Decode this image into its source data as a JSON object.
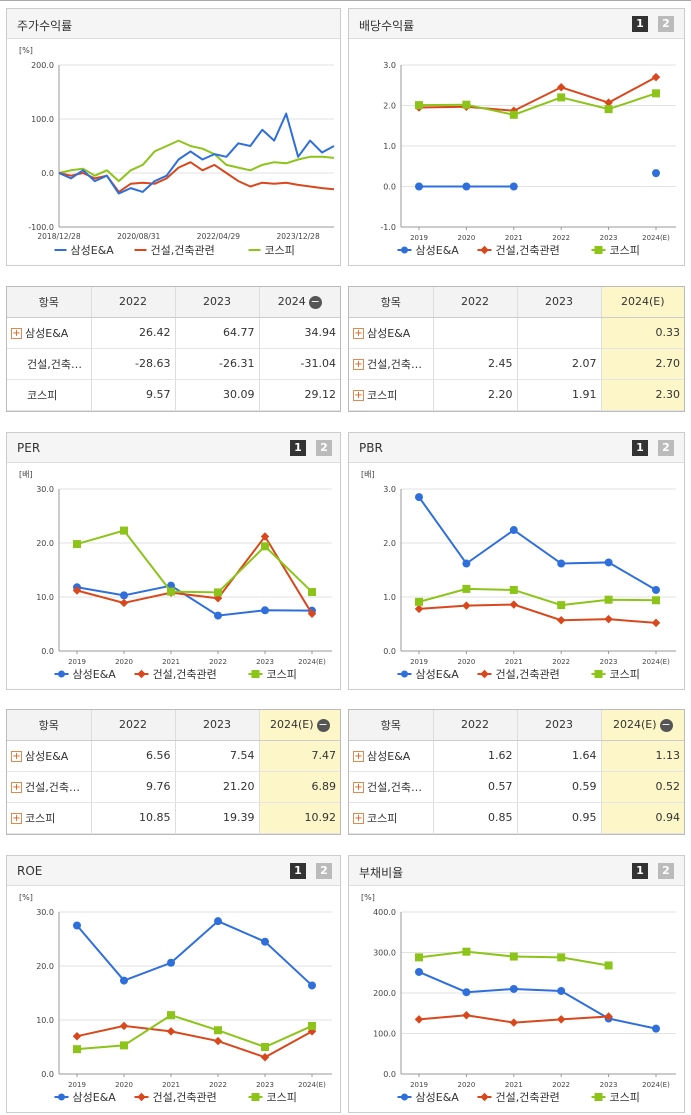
{
  "units": {
    "pct": "[%]",
    "times": "[배]"
  },
  "legend": [
    "삼성E&A",
    "건설,건축관련",
    "코스피"
  ],
  "series_colors": {
    "삼성E&A": "#2f6fdb",
    "건설,건축관련": "#d9481c",
    "코스피": "#8cc41a"
  },
  "page_buttons": [
    "1",
    "2"
  ],
  "panels": {
    "stock": {
      "title": "주가수익률"
    },
    "dividend": {
      "title": "배당수익률"
    },
    "per": {
      "title": "PER"
    },
    "pbr": {
      "title": "PBR"
    },
    "roe": {
      "title": "ROE"
    },
    "debt": {
      "title": "부채비율"
    }
  },
  "tables": {
    "stock": {
      "header": [
        "항목",
        "2022",
        "2023",
        "2024"
      ],
      "minus": "−",
      "rows": [
        {
          "name": "삼성E&A",
          "plus": true,
          "vals": [
            "26.42",
            "64.77",
            "34.94"
          ]
        },
        {
          "name": "건설,건축…",
          "plus": false,
          "vals": [
            "-28.63",
            "-26.31",
            "-31.04"
          ]
        },
        {
          "name": "코스피",
          "plus": false,
          "vals": [
            "9.57",
            "30.09",
            "29.12"
          ]
        }
      ]
    },
    "dividend": {
      "header": [
        "항목",
        "2022",
        "2023",
        "2024(E)"
      ],
      "rows": [
        {
          "name": "삼성E&A",
          "plus": true,
          "vals": [
            "",
            "",
            "0.33"
          ]
        },
        {
          "name": "건설,건축…",
          "plus": true,
          "vals": [
            "2.45",
            "2.07",
            "2.70"
          ]
        },
        {
          "name": "코스피",
          "plus": true,
          "vals": [
            "2.20",
            "1.91",
            "2.30"
          ]
        }
      ]
    },
    "per": {
      "header": [
        "항목",
        "2022",
        "2023",
        "2024(E)"
      ],
      "minus": "−",
      "rows": [
        {
          "name": "삼성E&A",
          "plus": true,
          "vals": [
            "6.56",
            "7.54",
            "7.47"
          ]
        },
        {
          "name": "건설,건축…",
          "plus": true,
          "vals": [
            "9.76",
            "21.20",
            "6.89"
          ]
        },
        {
          "name": "코스피",
          "plus": true,
          "vals": [
            "10.85",
            "19.39",
            "10.92"
          ]
        }
      ]
    },
    "pbr": {
      "header": [
        "항목",
        "2022",
        "2023",
        "2024(E)"
      ],
      "minus": "−",
      "rows": [
        {
          "name": "삼성E&A",
          "plus": true,
          "vals": [
            "1.62",
            "1.64",
            "1.13"
          ]
        },
        {
          "name": "건설,건축…",
          "plus": true,
          "vals": [
            "0.57",
            "0.59",
            "0.52"
          ]
        },
        {
          "name": "코스피",
          "plus": true,
          "vals": [
            "0.85",
            "0.95",
            "0.94"
          ]
        }
      ]
    }
  },
  "chart_data": [
    {
      "id": "stock",
      "type": "line",
      "ylabel": "[%]",
      "ylim": [
        -100,
        200
      ],
      "yticks": [
        "200.0",
        "100.0",
        "0.0",
        "-100.0"
      ],
      "xticklabels": [
        "2018/12/28",
        "2020/08/31",
        "2022/04/29",
        "2023/12/28"
      ],
      "x_span": [
        "2018/12/28",
        "2024/09"
      ],
      "series": [
        {
          "name": "삼성E&A",
          "x": [
            "2018/12",
            "2019/03",
            "2019/06",
            "2019/09",
            "2019/12",
            "2020/03",
            "2020/06",
            "2020/09",
            "2020/12",
            "2021/03",
            "2021/06",
            "2021/09",
            "2021/12",
            "2022/03",
            "2022/06",
            "2022/09",
            "2022/12",
            "2023/03",
            "2023/06",
            "2023/09",
            "2023/12",
            "2024/03",
            "2024/06",
            "2024/09"
          ],
          "values": [
            0,
            -10,
            5,
            -15,
            -5,
            -38,
            -28,
            -35,
            -15,
            -5,
            25,
            40,
            25,
            35,
            30,
            55,
            50,
            80,
            60,
            110,
            30,
            60,
            38,
            50
          ]
        },
        {
          "name": "건설,건축관련",
          "x": [
            "2018/12",
            "2019/03",
            "2019/06",
            "2019/09",
            "2019/12",
            "2020/03",
            "2020/06",
            "2020/09",
            "2020/12",
            "2021/03",
            "2021/06",
            "2021/09",
            "2021/12",
            "2022/03",
            "2022/06",
            "2022/09",
            "2022/12",
            "2023/03",
            "2023/06",
            "2023/09",
            "2023/12",
            "2024/03",
            "2024/06",
            "2024/09"
          ],
          "values": [
            0,
            -5,
            0,
            -10,
            -5,
            -35,
            -20,
            -18,
            -20,
            -10,
            10,
            20,
            5,
            15,
            0,
            -15,
            -25,
            -18,
            -20,
            -18,
            -22,
            -25,
            -28,
            -30
          ]
        },
        {
          "name": "코스피",
          "x": [
            "2018/12",
            "2019/03",
            "2019/06",
            "2019/09",
            "2019/12",
            "2020/03",
            "2020/06",
            "2020/09",
            "2020/12",
            "2021/03",
            "2021/06",
            "2021/09",
            "2021/12",
            "2022/03",
            "2022/06",
            "2022/09",
            "2022/12",
            "2023/03",
            "2023/06",
            "2023/09",
            "2023/12",
            "2024/03",
            "2024/06",
            "2024/09"
          ],
          "values": [
            0,
            5,
            8,
            -5,
            5,
            -15,
            5,
            15,
            40,
            50,
            60,
            50,
            45,
            35,
            15,
            10,
            5,
            15,
            20,
            18,
            25,
            30,
            30,
            28
          ]
        }
      ]
    },
    {
      "id": "dividend",
      "type": "line",
      "ylabel": "",
      "ylim": [
        -1,
        3
      ],
      "yticks": [
        "3.0",
        "2.0",
        "1.0",
        "0.0",
        "-1.0"
      ],
      "categories": [
        "2019",
        "2020",
        "2021",
        "2022",
        "2023",
        "2024(E)"
      ],
      "series": [
        {
          "name": "삼성E&A",
          "values": [
            0.0,
            0.0,
            0.0,
            null,
            null,
            0.33
          ]
        },
        {
          "name": "건설,건축관련",
          "values": [
            1.95,
            1.97,
            1.87,
            2.45,
            2.07,
            2.7
          ]
        },
        {
          "name": "코스피",
          "values": [
            2.01,
            2.02,
            1.77,
            2.2,
            1.91,
            2.3
          ]
        }
      ]
    },
    {
      "id": "per",
      "type": "line",
      "ylabel": "[배]",
      "ylim": [
        0,
        30
      ],
      "yticks": [
        "30.0",
        "20.0",
        "10.0",
        "0.0"
      ],
      "categories": [
        "2019",
        "2020",
        "2021",
        "2022",
        "2023",
        "2024(E)"
      ],
      "series": [
        {
          "name": "삼성E&A",
          "values": [
            11.8,
            10.3,
            12.1,
            6.56,
            7.54,
            7.47
          ]
        },
        {
          "name": "건설,건축관련",
          "values": [
            11.2,
            8.9,
            10.8,
            9.76,
            21.2,
            6.89
          ]
        },
        {
          "name": "코스피",
          "values": [
            19.8,
            22.3,
            11.0,
            10.85,
            19.39,
            10.92
          ]
        }
      ]
    },
    {
      "id": "pbr",
      "type": "line",
      "ylabel": "[배]",
      "ylim": [
        0,
        3
      ],
      "yticks": [
        "3.0",
        "2.0",
        "1.0",
        "0.0"
      ],
      "categories": [
        "2019",
        "2020",
        "2021",
        "2022",
        "2023",
        "2024(E)"
      ],
      "series": [
        {
          "name": "삼성E&A",
          "values": [
            2.85,
            1.62,
            2.24,
            1.62,
            1.64,
            1.13
          ]
        },
        {
          "name": "건설,건축관련",
          "values": [
            0.78,
            0.84,
            0.86,
            0.57,
            0.59,
            0.52
          ]
        },
        {
          "name": "코스피",
          "values": [
            0.91,
            1.15,
            1.13,
            0.85,
            0.95,
            0.94
          ]
        }
      ]
    },
    {
      "id": "roe",
      "type": "line",
      "ylabel": "[%]",
      "ylim": [
        0,
        30
      ],
      "yticks": [
        "30.0",
        "20.0",
        "10.0",
        "0.0"
      ],
      "categories": [
        "2019",
        "2020",
        "2021",
        "2022",
        "2023",
        "2024(E)"
      ],
      "series": [
        {
          "name": "삼성E&A",
          "values": [
            27.5,
            17.3,
            20.6,
            28.3,
            24.5,
            16.4
          ]
        },
        {
          "name": "건설,건축관련",
          "values": [
            7.0,
            8.9,
            7.9,
            6.1,
            3.1,
            7.9
          ]
        },
        {
          "name": "코스피",
          "values": [
            4.6,
            5.3,
            10.9,
            8.1,
            5.0,
            8.9
          ]
        }
      ]
    },
    {
      "id": "debt",
      "type": "line",
      "ylabel": "[%]",
      "ylim": [
        0,
        400
      ],
      "yticks": [
        "400.0",
        "300.0",
        "200.0",
        "100.0",
        "0.0"
      ],
      "categories": [
        "2019",
        "2020",
        "2021",
        "2022",
        "2023",
        "2024(E)"
      ],
      "series": [
        {
          "name": "삼성E&A",
          "values": [
            252,
            202,
            210,
            205,
            137,
            112
          ]
        },
        {
          "name": "건설,건축관련",
          "values": [
            135,
            145,
            127,
            135,
            142,
            null
          ]
        },
        {
          "name": "코스피",
          "values": [
            288,
            302,
            290,
            288,
            268,
            null
          ]
        }
      ]
    }
  ]
}
